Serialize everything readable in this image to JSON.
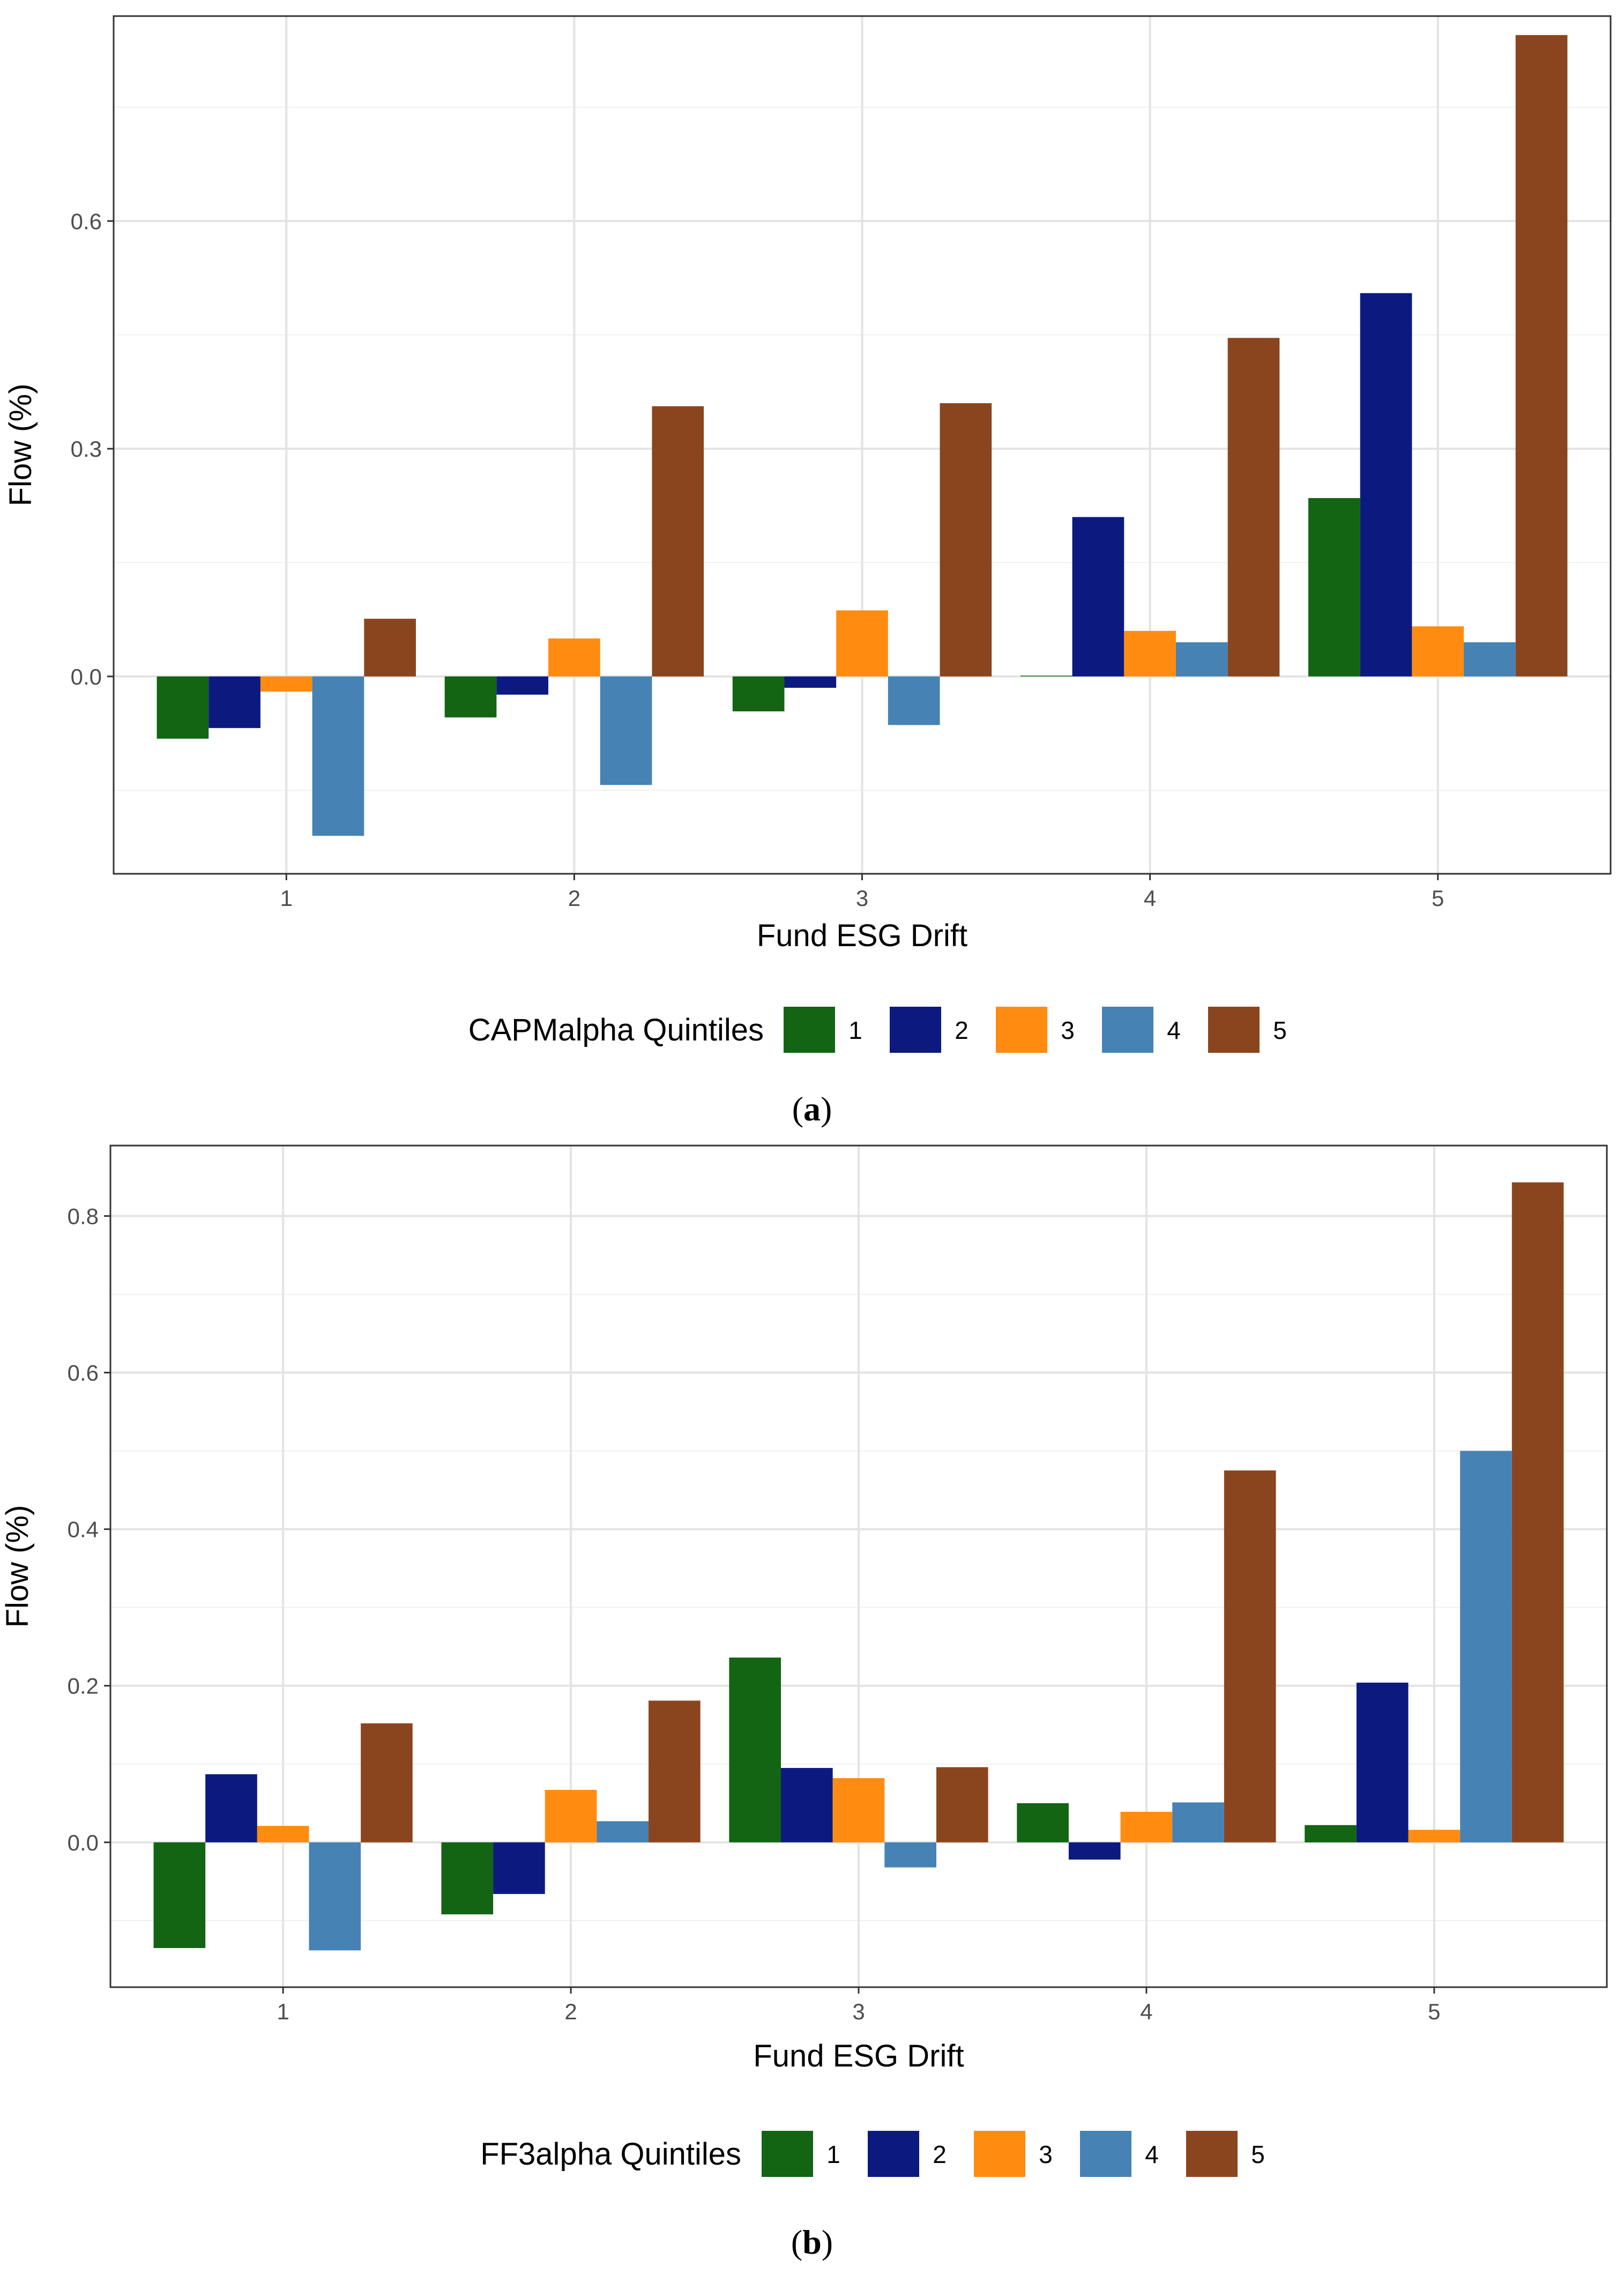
{
  "chart_data": [
    {
      "type": "bar",
      "panel": "a",
      "xlabel": "Fund ESG Drift",
      "ylabel": "Flow (%)",
      "categories": [
        "1",
        "2",
        "3",
        "4",
        "5"
      ],
      "legend_title": "CAPMalpha Quintiles",
      "legend_placement": "bottom",
      "yticks": [
        0.0,
        0.3,
        0.6
      ],
      "ytick_labels": [
        "0.0",
        "0.3",
        "0.6"
      ],
      "ylim": [
        -0.26,
        0.87
      ],
      "grid": true,
      "series": [
        {
          "name": "1",
          "color": "#136413",
          "values": [
            -0.082,
            -0.054,
            -0.046,
            0.001,
            0.235
          ]
        },
        {
          "name": "2",
          "color": "#0c1a80",
          "values": [
            -0.068,
            -0.024,
            -0.015,
            0.21,
            0.505
          ]
        },
        {
          "name": "3",
          "color": "#ff8c10",
          "values": [
            -0.02,
            0.05,
            0.087,
            0.06,
            0.066
          ]
        },
        {
          "name": "4",
          "color": "#4682b4",
          "values": [
            -0.21,
            -0.143,
            -0.064,
            0.045,
            0.045
          ]
        },
        {
          "name": "5",
          "color": "#8b451e",
          "values": [
            0.076,
            0.356,
            0.36,
            0.446,
            0.845
          ]
        }
      ]
    },
    {
      "type": "bar",
      "panel": "b",
      "xlabel": "Fund ESG Drift",
      "ylabel": "Flow (%)",
      "categories": [
        "1",
        "2",
        "3",
        "4",
        "5"
      ],
      "legend_title": "FF3alpha Quintiles",
      "legend_placement": "bottom",
      "yticks": [
        0.0,
        0.2,
        0.4,
        0.6,
        0.8
      ],
      "ytick_labels": [
        "0.0",
        "0.2",
        "0.4",
        "0.6",
        "0.8"
      ],
      "ylim": [
        -0.185,
        0.89
      ],
      "grid": true,
      "series": [
        {
          "name": "1",
          "color": "#136413",
          "values": [
            -0.135,
            -0.092,
            0.236,
            0.05,
            0.022
          ]
        },
        {
          "name": "2",
          "color": "#0c1a80",
          "values": [
            0.087,
            -0.066,
            0.095,
            -0.022,
            0.204
          ]
        },
        {
          "name": "3",
          "color": "#ff8c10",
          "values": [
            0.021,
            0.067,
            0.082,
            0.039,
            0.016
          ]
        },
        {
          "name": "4",
          "color": "#4682b4",
          "values": [
            -0.138,
            0.027,
            -0.032,
            0.051,
            0.5
          ]
        },
        {
          "name": "5",
          "color": "#8b451e",
          "values": [
            0.152,
            0.181,
            0.096,
            0.475,
            0.843
          ]
        }
      ]
    }
  ],
  "captions": [
    "a",
    "b"
  ]
}
